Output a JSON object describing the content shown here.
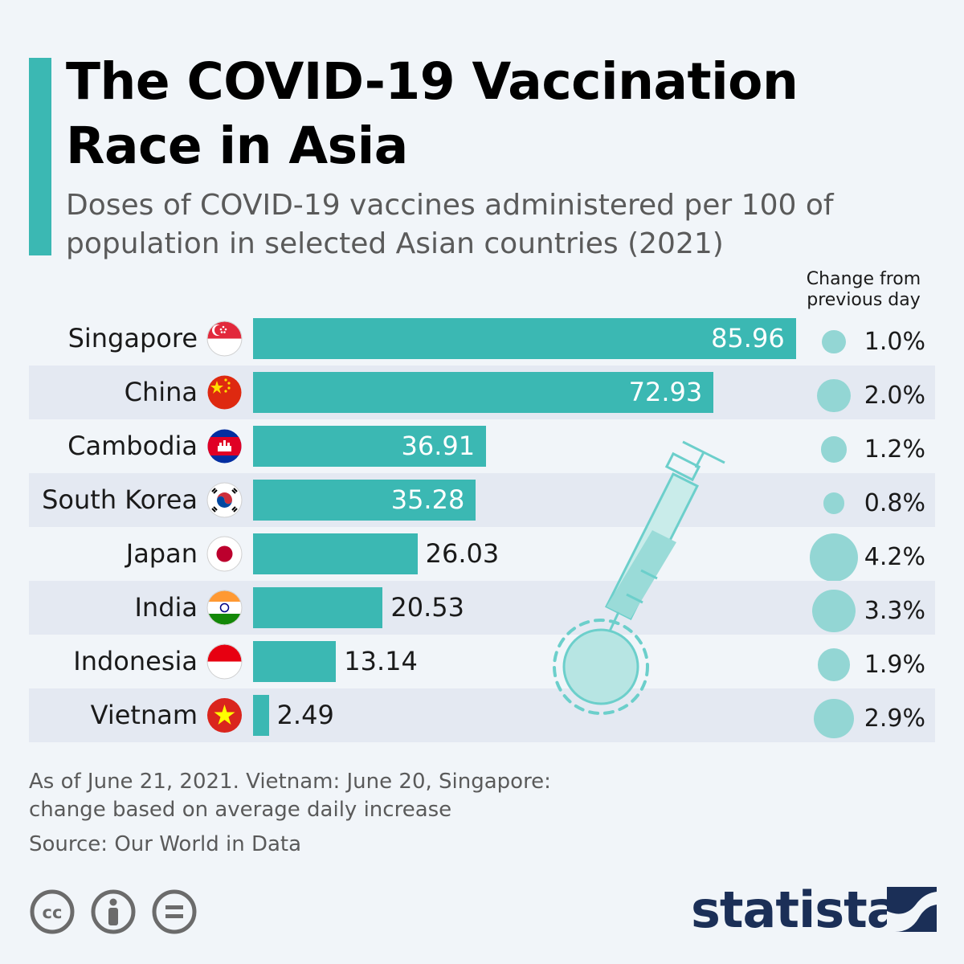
{
  "header": {
    "title": "The COVID-19 Vaccination Race in Asia",
    "subtitle": "Doses of COVID-19 vaccines administered per 100 of population in selected Asian countries (2021)",
    "change_header": [
      "Change from",
      "previous day"
    ]
  },
  "chart_data": {
    "type": "bar",
    "orientation": "horizontal",
    "title": "The COVID-19 Vaccination Race in Asia",
    "subtitle": "Doses of COVID-19 vaccines administered per 100 of population in selected Asian countries (2021)",
    "categories": [
      "Singapore",
      "China",
      "Cambodia",
      "South Korea",
      "Japan",
      "India",
      "Indonesia",
      "Vietnam"
    ],
    "values": [
      85.96,
      72.93,
      36.91,
      35.28,
      26.03,
      20.53,
      13.14,
      2.49
    ],
    "value_labels": [
      "85.96",
      "72.93",
      "36.91",
      "35.28",
      "26.03",
      "20.53",
      "13.14",
      "2.49"
    ],
    "change_from_previous_day": [
      1.0,
      2.0,
      1.2,
      0.8,
      4.2,
      3.3,
      1.9,
      2.9
    ],
    "change_labels": [
      "1.0%",
      "2.0%",
      "1.2%",
      "0.8%",
      "4.2%",
      "3.3%",
      "1.9%",
      "2.9%"
    ],
    "xlim": [
      0,
      86
    ],
    "grid": false,
    "legend": "none",
    "colors": {
      "bar": "#3bb8b3",
      "dot": "#93d6d4",
      "accent": "#3bb8b3"
    }
  },
  "flags": [
    "singapore-flag-icon",
    "china-flag-icon",
    "cambodia-flag-icon",
    "south-korea-flag-icon",
    "japan-flag-icon",
    "india-flag-icon",
    "indonesia-flag-icon",
    "vietnam-flag-icon"
  ],
  "footer": {
    "note": "As of June 21, 2021. Vietnam: June 20, Singapore: change based on average daily increase",
    "source": "Source: Our World in Data",
    "icons": [
      "creative-commons-icon",
      "attribution-icon",
      "no-derivatives-icon"
    ],
    "logo": "statista"
  }
}
